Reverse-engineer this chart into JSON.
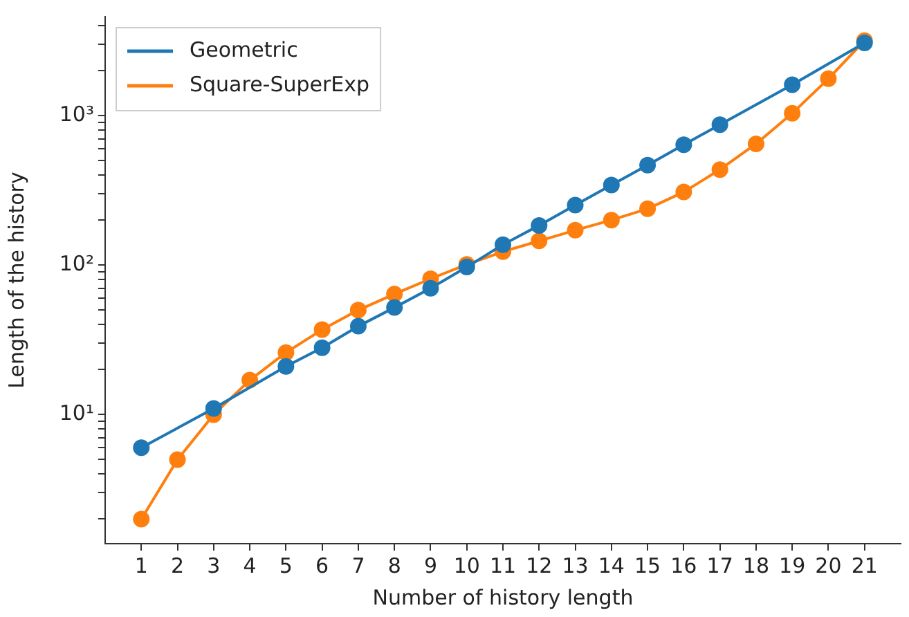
{
  "chart_data": {
    "type": "line",
    "xlabel": "Number of history length",
    "ylabel": "Length of the history",
    "log": "y",
    "grid": false,
    "legend": "top left",
    "marker": "circle",
    "line_style": "solid",
    "xlim": [
      0,
      22
    ],
    "xticks": [
      1,
      2,
      3,
      4,
      5,
      6,
      7,
      8,
      9,
      10,
      11,
      12,
      13,
      14,
      15,
      16,
      17,
      18,
      19,
      20,
      21
    ],
    "ylim": [
      1.37,
      4590
    ],
    "yticks": [
      {
        "value": 2,
        "label": null
      },
      {
        "value": 3,
        "label": null
      },
      {
        "value": 4,
        "label": null
      },
      {
        "value": 5,
        "label": null
      },
      {
        "value": 6,
        "label": null
      },
      {
        "value": 7,
        "label": null
      },
      {
        "value": 8,
        "label": null
      },
      {
        "value": 9,
        "label": null
      },
      {
        "value": 10,
        "label": "10¹"
      },
      {
        "value": 20,
        "label": null
      },
      {
        "value": 30,
        "label": null
      },
      {
        "value": 40,
        "label": null
      },
      {
        "value": 50,
        "label": null
      },
      {
        "value": 60,
        "label": null
      },
      {
        "value": 70,
        "label": null
      },
      {
        "value": 80,
        "label": null
      },
      {
        "value": 90,
        "label": null
      },
      {
        "value": 100,
        "label": "10²"
      },
      {
        "value": 200,
        "label": null
      },
      {
        "value": 300,
        "label": null
      },
      {
        "value": 400,
        "label": null
      },
      {
        "value": 500,
        "label": null
      },
      {
        "value": 600,
        "label": null
      },
      {
        "value": 700,
        "label": null
      },
      {
        "value": 800,
        "label": null
      },
      {
        "value": 900,
        "label": null
      },
      {
        "value": 1000,
        "label": "10³"
      },
      {
        "value": 2000,
        "label": null
      },
      {
        "value": 3000,
        "label": null
      },
      {
        "value": 4000,
        "label": null
      }
    ],
    "series": [
      {
        "name": "Geometric",
        "color": "#1f77b4",
        "x": [
          1,
          3,
          5,
          6,
          7,
          8,
          9,
          10,
          11,
          12,
          13,
          14,
          15,
          16,
          17,
          19,
          21
        ],
        "values": [
          6,
          11,
          21,
          28,
          39,
          52,
          70,
          97,
          137,
          184,
          252,
          343,
          466,
          638,
          869,
          1607,
          3060
        ]
      },
      {
        "name": "Square-SuperExp",
        "color": "#ff7f0e",
        "x": [
          1,
          2,
          3,
          4,
          5,
          6,
          7,
          8,
          9,
          10,
          11,
          12,
          13,
          14,
          15,
          16,
          17,
          18,
          19,
          20,
          21
        ],
        "values": [
          2,
          5,
          10,
          17,
          26,
          37,
          50,
          64,
          81,
          101,
          123,
          145,
          171,
          200,
          238,
          308,
          435,
          647,
          1035,
          1763,
          3170
        ]
      }
    ]
  }
}
